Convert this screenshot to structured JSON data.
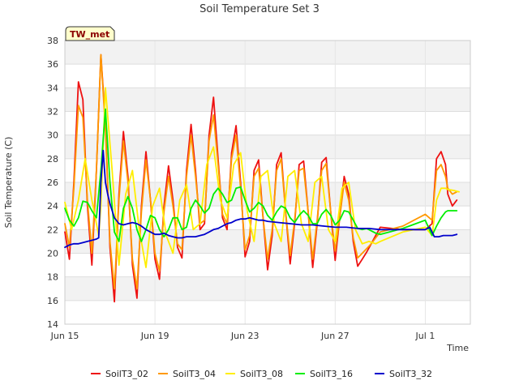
{
  "chart_data": {
    "type": "line",
    "title": "Soil Temperature Set 3",
    "xlabel": "Time",
    "ylabel": "Soil Temperature (C)",
    "site_badge": "TW_met",
    "x_unit": "days since Jun 15",
    "xlim": [
      0,
      18
    ],
    "ylim": [
      14,
      38
    ],
    "x_ticks": [
      {
        "label": "Jun 15",
        "value": 0
      },
      {
        "label": "Jun 19",
        "value": 4
      },
      {
        "label": "Jun 23",
        "value": 8
      },
      {
        "label": "Jun 27",
        "value": 12
      },
      {
        "label": "Jul 1",
        "value": 16
      }
    ],
    "y_ticks": [
      "14",
      "16",
      "18",
      "20",
      "22",
      "24",
      "26",
      "28",
      "30",
      "32",
      "34",
      "36",
      "38"
    ],
    "grid": true,
    "legend_position": "bottom",
    "series": [
      {
        "name": "SoilT3_02",
        "color": "#ee1111",
        "x": [
          0,
          0.2,
          0.4,
          0.6,
          0.8,
          1.0,
          1.2,
          1.4,
          1.6,
          1.8,
          2.0,
          2.2,
          2.4,
          2.6,
          2.8,
          3.0,
          3.2,
          3.4,
          3.6,
          3.8,
          4.0,
          4.2,
          4.4,
          4.6,
          4.8,
          5.0,
          5.2,
          5.4,
          5.6,
          5.8,
          6.0,
          6.2,
          6.4,
          6.6,
          6.8,
          7.0,
          7.2,
          7.4,
          7.6,
          7.8,
          8.0,
          8.2,
          8.4,
          8.6,
          8.8,
          9.0,
          9.2,
          9.4,
          9.6,
          9.8,
          10.0,
          10.2,
          10.4,
          10.6,
          10.8,
          11.0,
          11.2,
          11.4,
          11.6,
          11.8,
          12.0,
          12.2,
          12.4,
          12.6,
          12.8,
          13.0,
          13.2,
          13.4,
          13.6,
          13.8,
          14.0,
          15.0,
          16.0,
          16.3,
          16.5,
          16.7,
          16.9,
          17.0,
          17.2,
          17.4
        ],
        "y": [
          21.8,
          19.5,
          26.0,
          34.5,
          33.0,
          24.0,
          19.0,
          27.0,
          36.8,
          31.0,
          20.5,
          15.9,
          25.0,
          30.3,
          26.5,
          19.0,
          16.2,
          24.0,
          28.6,
          24.5,
          19.5,
          17.8,
          24.0,
          27.4,
          24.5,
          20.5,
          19.6,
          27.0,
          30.9,
          27.0,
          22.0,
          22.5,
          30.0,
          33.2,
          28.0,
          23.0,
          22.0,
          28.5,
          30.8,
          26.0,
          19.7,
          21.0,
          27.0,
          27.9,
          23.0,
          18.6,
          21.5,
          27.5,
          28.5,
          23.5,
          19.1,
          22.5,
          27.5,
          27.8,
          23.5,
          18.8,
          22.5,
          27.7,
          28.1,
          23.5,
          19.4,
          23.0,
          26.5,
          25.0,
          21.0,
          18.9,
          19.5,
          20.1,
          20.8,
          21.5,
          22.2,
          22.0,
          22.0,
          22.5,
          28.0,
          28.6,
          27.5,
          25.0,
          24.0,
          24.5
        ]
      },
      {
        "name": "SoilT3_04",
        "color": "#ff9900",
        "x": [
          0,
          0.2,
          0.4,
          0.6,
          0.8,
          1.0,
          1.2,
          1.4,
          1.6,
          1.8,
          2.0,
          2.2,
          2.4,
          2.6,
          2.8,
          3.0,
          3.2,
          3.4,
          3.6,
          3.8,
          4.0,
          4.2,
          4.4,
          4.6,
          4.8,
          5.0,
          5.2,
          5.4,
          5.6,
          5.8,
          6.0,
          6.2,
          6.4,
          6.6,
          6.8,
          7.0,
          7.2,
          7.4,
          7.6,
          7.8,
          8.0,
          8.2,
          8.4,
          8.6,
          8.8,
          9.0,
          9.2,
          9.4,
          9.6,
          9.8,
          10.0,
          10.2,
          10.4,
          10.6,
          10.8,
          11.0,
          11.2,
          11.4,
          11.6,
          11.8,
          12.0,
          12.2,
          12.4,
          12.6,
          12.8,
          13.0,
          13.2,
          13.4,
          13.6,
          13.8,
          14.0,
          15.0,
          16.0,
          16.3,
          16.5,
          16.7,
          16.9,
          17.0,
          17.2,
          17.4
        ],
        "y": [
          22.5,
          20.5,
          25.5,
          32.5,
          31.5,
          24.5,
          20.0,
          27.0,
          36.8,
          30.5,
          21.0,
          17.0,
          24.5,
          29.5,
          26.0,
          19.5,
          17.0,
          23.5,
          27.9,
          24.5,
          20.0,
          18.5,
          23.5,
          26.5,
          24.0,
          20.8,
          20.3,
          26.5,
          30.0,
          26.5,
          22.5,
          22.8,
          29.5,
          31.7,
          27.5,
          23.3,
          22.5,
          28.0,
          30.0,
          25.5,
          20.3,
          21.5,
          26.5,
          27.2,
          23.0,
          19.5,
          22.0,
          27.0,
          28.0,
          23.5,
          19.8,
          22.8,
          27.0,
          27.2,
          23.5,
          19.5,
          22.8,
          27.0,
          27.6,
          23.5,
          20.2,
          23.0,
          26.0,
          24.5,
          21.3,
          19.6,
          20.0,
          20.4,
          20.8,
          21.3,
          21.8,
          22.3,
          23.3,
          22.8,
          27.0,
          27.5,
          26.5,
          25.5,
          25.0,
          25.2
        ]
      },
      {
        "name": "SoilT3_08",
        "color": "#ffee00",
        "x": [
          0,
          0.3,
          0.6,
          0.9,
          1.2,
          1.5,
          1.6,
          1.8,
          2.1,
          2.4,
          2.7,
          3.0,
          3.3,
          3.6,
          3.9,
          4.2,
          4.5,
          4.8,
          5.1,
          5.4,
          5.7,
          6.0,
          6.3,
          6.6,
          6.9,
          7.2,
          7.5,
          7.8,
          8.1,
          8.4,
          8.7,
          9.0,
          9.3,
          9.6,
          9.9,
          10.2,
          10.5,
          10.8,
          11.1,
          11.4,
          11.7,
          12.0,
          12.3,
          12.6,
          12.9,
          13.2,
          13.5,
          13.8,
          14.0,
          15.0,
          16.0,
          16.3,
          16.5,
          16.7,
          16.9,
          17.0,
          17.3,
          17.5
        ],
        "y": [
          24.3,
          22.0,
          24.5,
          28.0,
          24.5,
          21.5,
          24.0,
          34.0,
          27.0,
          19.0,
          25.0,
          27.0,
          22.0,
          18.8,
          24.0,
          25.5,
          21.5,
          20.0,
          24.5,
          25.8,
          22.0,
          22.5,
          27.5,
          29.0,
          24.5,
          23.0,
          27.5,
          28.5,
          23.5,
          21.0,
          26.5,
          27.0,
          22.5,
          21.0,
          26.5,
          27.0,
          22.5,
          21.0,
          26.0,
          26.5,
          22.0,
          21.0,
          25.5,
          26.0,
          22.0,
          20.8,
          21.0,
          20.8,
          21.0,
          21.8,
          22.2,
          21.5,
          24.5,
          25.5,
          25.5,
          25.4,
          25.3,
          25.2
        ]
      },
      {
        "name": "SoilT3_16",
        "color": "#00ee00",
        "x": [
          0,
          0.2,
          0.4,
          0.6,
          0.8,
          1.0,
          1.2,
          1.4,
          1.6,
          1.8,
          2.0,
          2.2,
          2.4,
          2.6,
          2.8,
          3.0,
          3.2,
          3.4,
          3.6,
          3.8,
          4.0,
          4.2,
          4.4,
          4.6,
          4.8,
          5.0,
          5.2,
          5.4,
          5.6,
          5.8,
          6.0,
          6.2,
          6.4,
          6.6,
          6.8,
          7.0,
          7.2,
          7.4,
          7.6,
          7.8,
          8.0,
          8.2,
          8.4,
          8.6,
          8.8,
          9.0,
          9.2,
          9.4,
          9.6,
          9.8,
          10.0,
          10.2,
          10.4,
          10.6,
          10.8,
          11.0,
          11.2,
          11.4,
          11.6,
          11.8,
          12.0,
          12.2,
          12.4,
          12.6,
          12.8,
          13.0,
          13.2,
          13.4,
          13.6,
          13.8,
          14.0,
          15.0,
          16.0,
          16.3,
          16.5,
          16.7,
          16.9,
          17.0,
          17.2,
          17.4
        ],
        "y": [
          23.8,
          22.8,
          22.3,
          23.0,
          24.4,
          24.3,
          23.6,
          23.0,
          27.0,
          32.2,
          26.0,
          21.8,
          21.0,
          23.8,
          24.8,
          23.8,
          22.0,
          21.0,
          22.0,
          23.2,
          23.0,
          22.0,
          21.4,
          22.0,
          23.0,
          23.0,
          22.0,
          22.2,
          23.8,
          24.5,
          24.0,
          23.4,
          23.8,
          25.0,
          25.5,
          25.0,
          24.3,
          24.5,
          25.5,
          25.6,
          24.5,
          23.5,
          23.8,
          24.3,
          24.0,
          23.2,
          22.8,
          23.5,
          24.0,
          23.8,
          23.0,
          22.6,
          23.2,
          23.6,
          23.2,
          22.5,
          22.5,
          23.3,
          23.7,
          23.2,
          22.4,
          22.8,
          23.6,
          23.5,
          22.8,
          22.1,
          22.0,
          22.1,
          21.9,
          21.7,
          21.6,
          22.1,
          22.8,
          21.5,
          22.3,
          23.0,
          23.5,
          23.6,
          23.6,
          23.6
        ]
      },
      {
        "name": "SoilT3_32",
        "color": "#0000cc",
        "x": [
          0,
          0.2,
          0.4,
          0.6,
          0.8,
          1.0,
          1.2,
          1.4,
          1.5,
          1.6,
          1.7,
          1.8,
          1.9,
          2.0,
          2.2,
          2.4,
          2.6,
          2.8,
          3.0,
          3.2,
          3.4,
          3.6,
          3.8,
          4.0,
          4.2,
          4.4,
          4.6,
          4.8,
          5.0,
          5.2,
          5.4,
          5.6,
          5.8,
          6.0,
          6.2,
          6.4,
          6.6,
          6.8,
          7.0,
          7.2,
          7.4,
          7.6,
          7.8,
          8.0,
          8.2,
          8.4,
          8.6,
          8.8,
          9.0,
          9.5,
          10.0,
          10.5,
          11.0,
          11.5,
          12.0,
          12.5,
          13.0,
          13.5,
          14.0,
          15.0,
          16.0,
          16.2,
          16.4,
          16.6,
          16.8,
          17.0,
          17.2,
          17.4
        ],
        "y": [
          20.5,
          20.7,
          20.8,
          20.8,
          20.9,
          21.0,
          21.1,
          21.2,
          21.3,
          26.0,
          28.7,
          26.0,
          25.0,
          24.2,
          23.0,
          22.5,
          22.4,
          22.5,
          22.6,
          22.5,
          22.3,
          22.0,
          21.8,
          21.6,
          21.6,
          21.7,
          21.5,
          21.4,
          21.3,
          21.3,
          21.4,
          21.4,
          21.4,
          21.5,
          21.6,
          21.8,
          22.0,
          22.1,
          22.3,
          22.5,
          22.6,
          22.8,
          22.9,
          22.9,
          23.0,
          22.9,
          22.8,
          22.8,
          22.7,
          22.6,
          22.5,
          22.4,
          22.4,
          22.3,
          22.2,
          22.2,
          22.1,
          22.1,
          22.0,
          22.0,
          22.0,
          22.2,
          21.4,
          21.4,
          21.5,
          21.5,
          21.5,
          21.6
        ]
      }
    ]
  }
}
